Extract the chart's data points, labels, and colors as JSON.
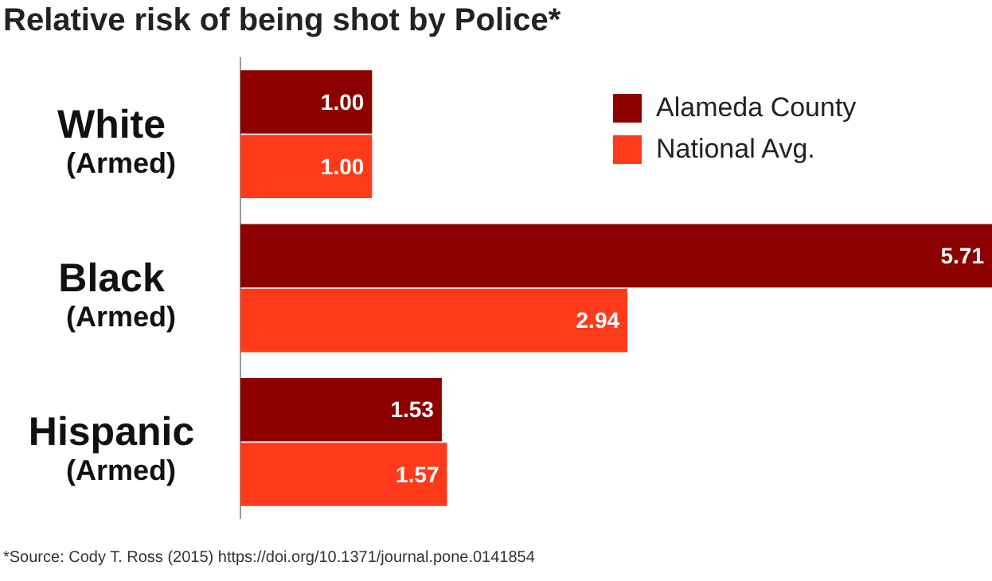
{
  "chart_data": {
    "type": "bar",
    "orientation": "horizontal",
    "title": "Relative risk of being shot by Police*",
    "categories": [
      "White (Armed)",
      "Black (Armed)",
      "Hispanic (Armed)"
    ],
    "series": [
      {
        "name": "Alameda County",
        "color": "#8c0000",
        "values": [
          1.0,
          5.71,
          1.53
        ],
        "value_labels": [
          "1.00",
          "5.71",
          "1.53"
        ]
      },
      {
        "name": "National Avg.",
        "color": "#ff3a1a",
        "values": [
          1.0,
          2.94,
          1.57
        ],
        "value_labels": [
          "1.00",
          "2.94",
          "1.57"
        ]
      }
    ],
    "legend": "top right",
    "annotations": [
      "*Source: Cody T. Ross (2015) https://doi.org/10.1371/journal.pone.0141854"
    ]
  }
}
